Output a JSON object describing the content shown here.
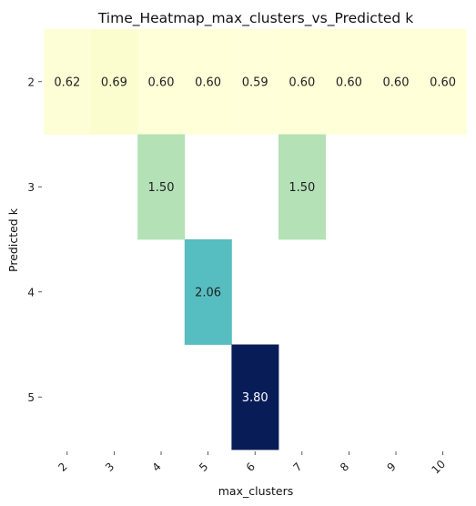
{
  "chart_data": {
    "type": "heatmap",
    "title": "Time_Heatmap_max_clusters_vs_Predicted k",
    "xlabel": "max_clusters",
    "ylabel": "Predicted k",
    "x_categories": [
      "2",
      "3",
      "4",
      "5",
      "6",
      "7",
      "8",
      "9",
      "10"
    ],
    "y_categories": [
      "2",
      "3",
      "4",
      "5"
    ],
    "colormap": "YlGnBu",
    "value_range": [
      0.59,
      3.8
    ],
    "cells": [
      {
        "x": "2",
        "y": "2",
        "value": 0.62,
        "label": "0.62"
      },
      {
        "x": "3",
        "y": "2",
        "value": 0.69,
        "label": "0.69"
      },
      {
        "x": "4",
        "y": "2",
        "value": 0.6,
        "label": "0.60"
      },
      {
        "x": "5",
        "y": "2",
        "value": 0.6,
        "label": "0.60"
      },
      {
        "x": "6",
        "y": "2",
        "value": 0.59,
        "label": "0.59"
      },
      {
        "x": "7",
        "y": "2",
        "value": 0.6,
        "label": "0.60"
      },
      {
        "x": "8",
        "y": "2",
        "value": 0.6,
        "label": "0.60"
      },
      {
        "x": "9",
        "y": "2",
        "value": 0.6,
        "label": "0.60"
      },
      {
        "x": "10",
        "y": "2",
        "value": 0.6,
        "label": "0.60"
      },
      {
        "x": "4",
        "y": "3",
        "value": 1.5,
        "label": "1.50"
      },
      {
        "x": "7",
        "y": "3",
        "value": 1.5,
        "label": "1.50"
      },
      {
        "x": "5",
        "y": "4",
        "value": 2.06,
        "label": "2.06"
      },
      {
        "x": "6",
        "y": "5",
        "value": 3.8,
        "label": "3.80"
      }
    ],
    "colorbar": false
  }
}
